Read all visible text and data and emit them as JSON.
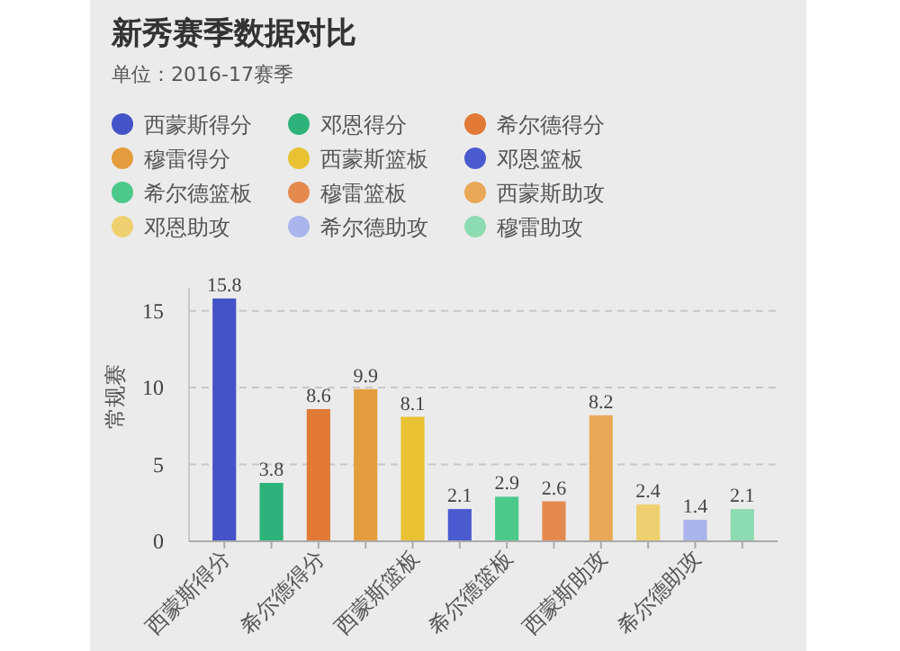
{
  "chart_data": {
    "type": "bar",
    "title": "新秀赛季数据对比",
    "subtitle": "单位：2016-17赛季",
    "ylabel": "常规赛",
    "categories": [
      "西蒙斯得分",
      null,
      "希尔德得分",
      null,
      "西蒙斯篮板",
      null,
      "希尔德篮板",
      null,
      "西蒙斯助攻",
      null,
      "希尔德助攻",
      null
    ],
    "series": [
      {
        "name": "西蒙斯得分",
        "color": "#4453c8",
        "values": [
          15.8,
          null,
          null,
          null,
          null,
          null,
          null,
          null,
          null,
          null,
          null,
          null
        ]
      },
      {
        "name": "邓恩得分",
        "color": "#2db37a",
        "values": [
          null,
          3.8,
          null,
          null,
          null,
          null,
          null,
          null,
          null,
          null,
          null,
          null
        ]
      },
      {
        "name": "希尔德得分",
        "color": "#e07a35",
        "values": [
          null,
          null,
          8.6,
          null,
          null,
          null,
          null,
          null,
          null,
          null,
          null,
          null
        ]
      },
      {
        "name": "穆雷得分",
        "color": "#e49d3c",
        "values": [
          null,
          null,
          null,
          9.9,
          null,
          null,
          null,
          null,
          null,
          null,
          null,
          null
        ]
      },
      {
        "name": "西蒙斯篮板",
        "color": "#e8c232",
        "values": [
          null,
          null,
          null,
          null,
          8.1,
          null,
          null,
          null,
          null,
          null,
          null,
          null
        ]
      },
      {
        "name": "邓恩篮板",
        "color": "#4a5bd0",
        "values": [
          null,
          null,
          null,
          null,
          null,
          2.1,
          null,
          null,
          null,
          null,
          null,
          null
        ]
      },
      {
        "name": "希尔德篮板",
        "color": "#4cc98a",
        "values": [
          null,
          null,
          null,
          null,
          null,
          null,
          2.9,
          null,
          null,
          null,
          null,
          null
        ]
      },
      {
        "name": "穆雷篮板",
        "color": "#e58a4e",
        "values": [
          null,
          null,
          null,
          null,
          null,
          null,
          null,
          2.6,
          null,
          null,
          null,
          null
        ]
      },
      {
        "name": "西蒙斯助攻",
        "color": "#e9a857",
        "values": [
          null,
          null,
          null,
          null,
          null,
          null,
          null,
          null,
          8.2,
          null,
          null,
          null
        ]
      },
      {
        "name": "邓恩助攻",
        "color": "#efd070",
        "values": [
          null,
          null,
          null,
          null,
          null,
          null,
          null,
          null,
          null,
          2.4,
          null,
          null
        ]
      },
      {
        "name": "希尔德助攻",
        "color": "#a9b5ec",
        "values": [
          null,
          null,
          null,
          null,
          null,
          null,
          null,
          null,
          null,
          null,
          1.4,
          null
        ]
      },
      {
        "name": "穆雷助攻",
        "color": "#8ddbb2",
        "values": [
          null,
          null,
          null,
          null,
          null,
          null,
          null,
          null,
          null,
          null,
          null,
          2.1
        ]
      }
    ],
    "ylim": [
      0,
      16.5
    ],
    "yticks": [
      0,
      5,
      10,
      15
    ],
    "grid": "y",
    "line_style": "dashed",
    "legend": "top",
    "data_labels": true
  }
}
